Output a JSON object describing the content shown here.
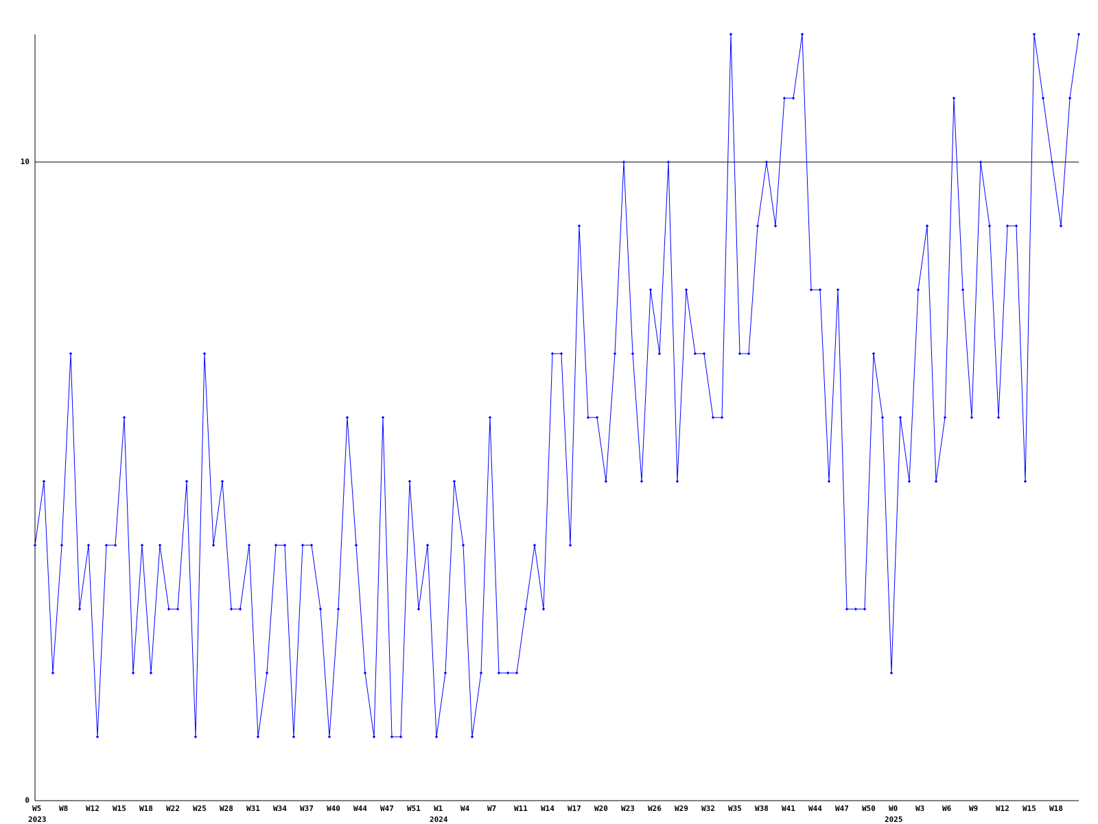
{
  "chart_data": {
    "type": "line",
    "categories": [
      "W5",
      null,
      null,
      "W8",
      null,
      null,
      "W12",
      null,
      null,
      "W15",
      null,
      null,
      "W18",
      null,
      null,
      "W22",
      null,
      null,
      "W25",
      null,
      null,
      "W28",
      null,
      null,
      "W31",
      null,
      null,
      "W34",
      null,
      null,
      "W37",
      null,
      null,
      "W40",
      null,
      null,
      "W44",
      null,
      null,
      "W47",
      null,
      null,
      "W51",
      null,
      null,
      "W1",
      null,
      null,
      "W4",
      null,
      null,
      "W7",
      null,
      null,
      "W11",
      null,
      null,
      "W14",
      null,
      null,
      "W17",
      null,
      null,
      "W20",
      null,
      null,
      "W23",
      null,
      null,
      "W26",
      null,
      null,
      "W29",
      null,
      null,
      "W32",
      null,
      null,
      "W35",
      null,
      null,
      "W38",
      null,
      null,
      "W41",
      null,
      null,
      "W44",
      null,
      null,
      "W47",
      null,
      null,
      "W50",
      null,
      null,
      "W0",
      null,
      null,
      "W3",
      null,
      null,
      "W6",
      null,
      null,
      "W9",
      null,
      null,
      "W12",
      null,
      null,
      "W15",
      null,
      null,
      "W18",
      null,
      null,
      null
    ],
    "category_years": [
      "2023",
      null,
      null,
      null,
      null,
      null,
      null,
      null,
      null,
      null,
      null,
      null,
      null,
      null,
      null,
      null,
      null,
      null,
      null,
      null,
      null,
      null,
      null,
      null,
      null,
      null,
      null,
      null,
      null,
      null,
      null,
      null,
      null,
      null,
      null,
      null,
      null,
      null,
      null,
      null,
      null,
      null,
      null,
      null,
      null,
      "2024",
      null,
      null,
      null,
      null,
      null,
      null,
      null,
      null,
      null,
      null,
      null,
      null,
      null,
      null,
      null,
      null,
      null,
      null,
      null,
      null,
      null,
      null,
      null,
      null,
      null,
      null,
      null,
      null,
      null,
      null,
      null,
      null,
      null,
      null,
      null,
      null,
      null,
      null,
      null,
      null,
      null,
      null,
      null,
      null,
      null,
      null,
      null,
      null,
      null,
      null,
      "2025",
      null,
      null,
      null,
      null,
      null,
      null,
      null,
      null,
      null,
      null,
      null,
      null,
      null,
      null,
      null,
      null,
      null,
      null,
      null,
      null,
      null
    ],
    "series": [
      {
        "color": "#0000ff",
        "values": [
          4,
          5,
          2,
          4,
          7,
          3,
          4,
          1,
          4,
          4,
          6,
          2,
          4,
          2,
          4,
          3,
          3,
          5,
          1,
          7,
          4,
          5,
          3,
          3,
          4,
          1,
          2,
          4,
          4,
          1,
          4,
          4,
          3,
          1,
          3,
          6,
          4,
          2,
          1,
          6,
          1,
          1,
          5,
          3,
          4,
          1,
          2,
          5,
          4,
          1,
          2,
          6,
          2,
          2,
          2,
          3,
          4,
          3,
          7,
          7,
          4,
          9,
          6,
          6,
          5,
          7,
          10,
          7,
          5,
          8,
          7,
          10,
          5,
          8,
          7,
          7,
          6,
          6,
          12,
          7,
          7,
          9,
          10,
          9,
          11,
          11,
          12,
          8,
          8,
          5,
          8,
          3,
          3,
          3,
          7,
          6,
          2,
          6,
          5,
          8,
          9,
          5,
          6,
          11,
          8,
          6,
          10,
          9,
          6,
          9,
          9,
          5,
          12,
          11,
          10,
          9,
          11,
          12
        ]
      }
    ],
    "ylim": [
      0,
      12
    ],
    "yticks": [
      0,
      10
    ],
    "grid": true
  }
}
